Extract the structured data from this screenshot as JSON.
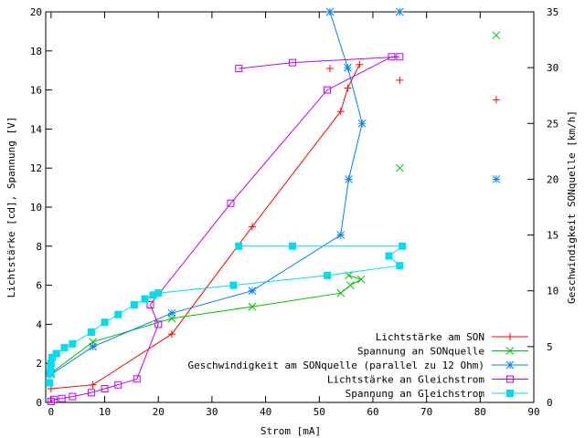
{
  "chart_data": {
    "type": "line",
    "xlabel": "Strom [mA]",
    "ylabel_left": "Lichtstärke [cd], Spannung [V]",
    "ylabel_right": "Geschwindigkeit SONquelle [km/h]",
    "xlim": [
      -1,
      90
    ],
    "ylim_left": [
      0,
      20
    ],
    "ylim_right": [
      0,
      35
    ],
    "x_ticks": [
      0,
      10,
      20,
      30,
      40,
      50,
      60,
      70,
      80,
      90
    ],
    "y_ticks_left": [
      0,
      2,
      4,
      6,
      8,
      10,
      12,
      14,
      16,
      18,
      20
    ],
    "y_ticks_right": [
      0,
      5,
      10,
      15,
      20,
      25,
      30,
      35
    ],
    "grid": false,
    "legend_position": "bottom-right",
    "series": [
      {
        "name": "Lichtstärke am SON",
        "color": "#ff0000",
        "marker": "plus",
        "axis": "left",
        "line_points": [
          [
            0,
            0.7
          ],
          [
            7.8,
            0.9
          ],
          [
            22.5,
            3.5
          ],
          [
            37.5,
            9.0
          ],
          [
            54,
            14.9
          ],
          [
            55.3,
            16.1
          ],
          [
            57.5,
            17.3
          ]
        ],
        "extra_points": [
          [
            52,
            17.1
          ],
          [
            65,
            16.5
          ],
          [
            83,
            15.5
          ]
        ]
      },
      {
        "name": "Spannung an SONquelle",
        "color": "#00c000",
        "marker": "cross",
        "axis": "left",
        "line_points": [
          [
            0,
            1.5
          ],
          [
            7.8,
            3.1
          ],
          [
            22.5,
            4.3
          ],
          [
            37.5,
            4.9
          ],
          [
            54,
            5.6
          ],
          [
            55.8,
            6.0
          ],
          [
            57.8,
            6.3
          ],
          [
            55.5,
            6.5
          ]
        ],
        "extra_points": [
          [
            65,
            12.0
          ],
          [
            83,
            18.8
          ]
        ]
      },
      {
        "name": "Geschwindigkeit am SONquelle (parallel zu 12 Ohm)",
        "color": "#0080ff",
        "marker": "star",
        "axis": "right",
        "line_points": [
          [
            0,
            2.5
          ],
          [
            7.8,
            5.0
          ],
          [
            22.5,
            8.0
          ],
          [
            37.5,
            10.0
          ],
          [
            54,
            15.0
          ],
          [
            55.5,
            20.0
          ],
          [
            58,
            25.0
          ],
          [
            55.3,
            30.0
          ],
          [
            52,
            35.0
          ]
        ],
        "extra_points": [
          [
            65,
            35.0
          ],
          [
            83,
            20.0
          ]
        ]
      },
      {
        "name": "Lichtstärke an Gleichstrom",
        "color": "#c000ff",
        "marker": "square",
        "axis": "left",
        "line_points": [
          [
            0,
            0.05
          ],
          [
            0.5,
            0.15
          ],
          [
            2,
            0.2
          ],
          [
            4,
            0.3
          ],
          [
            7.5,
            0.5
          ],
          [
            10,
            0.7
          ],
          [
            12.5,
            0.9
          ],
          [
            16,
            1.2
          ],
          [
            20,
            4.0
          ],
          [
            18.5,
            5.0
          ],
          [
            33.5,
            10.2
          ],
          [
            51.5,
            16.0
          ],
          [
            63.5,
            17.7
          ],
          [
            65,
            17.7
          ],
          [
            45,
            17.4
          ],
          [
            35,
            17.1
          ]
        ]
      },
      {
        "name": "Spannung an Gleichstrom",
        "color": "#00ddee",
        "marker": "filled-square",
        "axis": "left",
        "line_points": [
          [
            -0.3,
            1.0
          ],
          [
            -0.2,
            1.5
          ],
          [
            -0.1,
            1.8
          ],
          [
            0,
            2.0
          ],
          [
            0.2,
            2.3
          ],
          [
            1,
            2.5
          ],
          [
            2.5,
            2.8
          ],
          [
            4,
            3.0
          ],
          [
            7.5,
            3.6
          ],
          [
            10,
            4.1
          ],
          [
            12.5,
            4.5
          ],
          [
            15.5,
            5.0
          ],
          [
            17.5,
            5.3
          ],
          [
            19,
            5.5
          ],
          [
            20,
            5.6
          ],
          [
            34,
            6.0
          ],
          [
            51.5,
            6.5
          ],
          [
            65,
            7.0
          ],
          [
            63,
            7.5
          ],
          [
            65.5,
            8.0
          ],
          [
            45,
            8.0
          ],
          [
            35,
            8.0
          ]
        ]
      }
    ]
  }
}
